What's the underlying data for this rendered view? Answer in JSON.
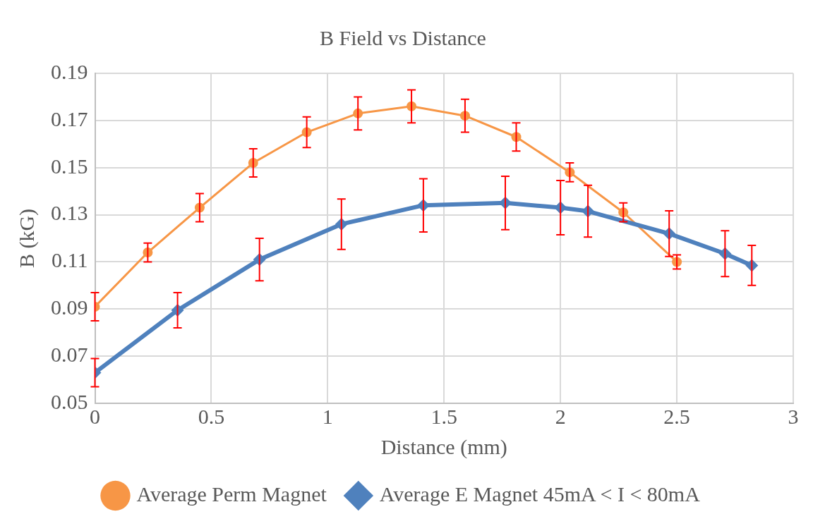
{
  "chart_data": {
    "type": "line",
    "title": "B Field vs Distance",
    "xlabel": "Distance (mm)",
    "ylabel": "B (kG)",
    "xlim": [
      0,
      3
    ],
    "xticks": [
      0,
      0.5,
      1,
      1.5,
      2,
      2.5,
      3
    ],
    "ylim": [
      0.05,
      0.19
    ],
    "yticks": [
      0.05,
      0.07,
      0.09,
      0.11,
      0.13,
      0.15,
      0.17,
      0.19
    ],
    "grid": true,
    "legend": "bottom",
    "series": [
      {
        "name": "Average Perm Magnet",
        "color": "#f79646",
        "marker": "circle",
        "x": [
          0,
          0.227,
          0.45,
          0.68,
          0.91,
          1.13,
          1.36,
          1.59,
          1.81,
          2.04,
          2.27,
          2.5
        ],
        "values": [
          0.091,
          0.114,
          0.133,
          0.152,
          0.165,
          0.173,
          0.176,
          0.172,
          0.163,
          0.148,
          0.131,
          0.11
        ],
        "errors": [
          0.006,
          0.004,
          0.006,
          0.006,
          0.0065,
          0.007,
          0.007,
          0.007,
          0.006,
          0.004,
          0.004,
          0.003
        ]
      },
      {
        "name": "Average E Magnet 45mA < I < 80mA",
        "color": "#4f81bd",
        "marker": "diamond",
        "x": [
          0,
          0.355,
          0.707,
          1.059,
          1.411,
          1.763,
          2.0,
          2.118,
          2.467,
          2.707,
          2.822
        ],
        "values": [
          0.063,
          0.0895,
          0.111,
          0.126,
          0.134,
          0.135,
          0.133,
          0.1315,
          0.122,
          0.1135,
          0.1085
        ],
        "errors": [
          0.006,
          0.0075,
          0.009,
          0.0107,
          0.0113,
          0.0113,
          0.0115,
          0.011,
          0.0097,
          0.0097,
          0.0085
        ]
      }
    ]
  }
}
